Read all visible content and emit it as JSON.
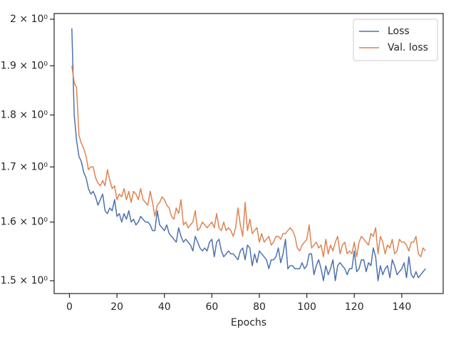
{
  "chart_data": {
    "type": "line",
    "x": [
      1,
      2,
      3,
      4,
      5,
      6,
      7,
      8,
      9,
      10,
      11,
      12,
      13,
      14,
      15,
      16,
      17,
      18,
      19,
      20,
      21,
      22,
      23,
      24,
      25,
      26,
      27,
      28,
      29,
      30,
      31,
      32,
      33,
      34,
      35,
      36,
      37,
      38,
      39,
      40,
      41,
      42,
      43,
      44,
      45,
      46,
      47,
      48,
      49,
      50,
      51,
      52,
      53,
      54,
      55,
      56,
      57,
      58,
      59,
      60,
      61,
      62,
      63,
      64,
      65,
      66,
      67,
      68,
      69,
      70,
      71,
      72,
      73,
      74,
      75,
      76,
      77,
      78,
      79,
      80,
      81,
      82,
      83,
      84,
      85,
      86,
      87,
      88,
      89,
      90,
      91,
      92,
      93,
      94,
      95,
      96,
      97,
      98,
      99,
      100,
      101,
      102,
      103,
      104,
      105,
      106,
      107,
      108,
      109,
      110,
      111,
      112,
      113,
      114,
      115,
      116,
      117,
      118,
      119,
      120,
      121,
      122,
      123,
      124,
      125,
      126,
      127,
      128,
      129,
      130,
      131,
      132,
      133,
      134,
      135,
      136,
      137,
      138,
      139,
      140,
      141,
      142,
      143,
      144,
      145,
      146,
      147,
      148,
      149,
      150
    ],
    "series": [
      {
        "name": "Loss",
        "color": "#4c72b0",
        "values": [
          1.98,
          1.8,
          1.75,
          1.72,
          1.71,
          1.69,
          1.68,
          1.66,
          1.65,
          1.655,
          1.645,
          1.63,
          1.64,
          1.65,
          1.62,
          1.615,
          1.625,
          1.62,
          1.64,
          1.61,
          1.615,
          1.6,
          1.615,
          1.605,
          1.62,
          1.6,
          1.605,
          1.595,
          1.6,
          1.61,
          1.605,
          1.6,
          1.6,
          1.595,
          1.585,
          1.585,
          1.62,
          1.595,
          1.59,
          1.585,
          1.595,
          1.58,
          1.575,
          1.57,
          1.565,
          1.59,
          1.575,
          1.565,
          1.57,
          1.565,
          1.56,
          1.55,
          1.575,
          1.565,
          1.555,
          1.55,
          1.555,
          1.55,
          1.565,
          1.57,
          1.54,
          1.565,
          1.57,
          1.55,
          1.54,
          1.545,
          1.55,
          1.545,
          1.545,
          1.54,
          1.535,
          1.55,
          1.555,
          1.535,
          1.56,
          1.555,
          1.525,
          1.545,
          1.53,
          1.55,
          1.545,
          1.54,
          1.535,
          1.52,
          1.535,
          1.535,
          1.54,
          1.555,
          1.53,
          1.545,
          1.57,
          1.52,
          1.525,
          1.525,
          1.52,
          1.52,
          1.52,
          1.53,
          1.52,
          1.525,
          1.545,
          1.545,
          1.51,
          1.525,
          1.535,
          1.52,
          1.5,
          1.525,
          1.51,
          1.52,
          1.535,
          1.5,
          1.525,
          1.53,
          1.525,
          1.52,
          1.51,
          1.52,
          1.52,
          1.55,
          1.515,
          1.52,
          1.535,
          1.535,
          1.515,
          1.53,
          1.525,
          1.555,
          1.54,
          1.5,
          1.525,
          1.51,
          1.52,
          1.525,
          1.505,
          1.535,
          1.525,
          1.51,
          1.515,
          1.52,
          1.53,
          1.505,
          1.54,
          1.51,
          1.505,
          1.515,
          1.505,
          1.51,
          1.515,
          1.52
        ]
      },
      {
        "name": "Val. loss",
        "color": "#dd8452",
        "values": [
          1.9,
          1.865,
          1.855,
          1.76,
          1.745,
          1.735,
          1.72,
          1.695,
          1.7,
          1.7,
          1.68,
          1.67,
          1.665,
          1.675,
          1.665,
          1.695,
          1.675,
          1.66,
          1.665,
          1.64,
          1.65,
          1.645,
          1.66,
          1.64,
          1.655,
          1.635,
          1.655,
          1.65,
          1.64,
          1.66,
          1.64,
          1.635,
          1.63,
          1.655,
          1.635,
          1.61,
          1.63,
          1.635,
          1.645,
          1.64,
          1.63,
          1.625,
          1.61,
          1.605,
          1.625,
          1.615,
          1.64,
          1.595,
          1.6,
          1.59,
          1.595,
          1.6,
          1.62,
          1.585,
          1.59,
          1.6,
          1.595,
          1.59,
          1.595,
          1.6,
          1.59,
          1.615,
          1.59,
          1.585,
          1.6,
          1.585,
          1.59,
          1.585,
          1.575,
          1.59,
          1.625,
          1.595,
          1.575,
          1.635,
          1.585,
          1.605,
          1.58,
          1.585,
          1.59,
          1.565,
          1.58,
          1.565,
          1.57,
          1.575,
          1.56,
          1.565,
          1.575,
          1.575,
          1.57,
          1.58,
          1.58,
          1.585,
          1.59,
          1.585,
          1.575,
          1.555,
          1.55,
          1.56,
          1.565,
          1.57,
          1.595,
          1.555,
          1.56,
          1.565,
          1.555,
          1.56,
          1.54,
          1.57,
          1.545,
          1.56,
          1.55,
          1.565,
          1.575,
          1.545,
          1.56,
          1.565,
          1.545,
          1.55,
          1.545,
          1.565,
          1.54,
          1.565,
          1.575,
          1.57,
          1.565,
          1.56,
          1.58,
          1.575,
          1.59,
          1.545,
          1.575,
          1.565,
          1.545,
          1.56,
          1.555,
          1.57,
          1.545,
          1.55,
          1.57,
          1.565,
          1.565,
          1.56,
          1.55,
          1.565,
          1.565,
          1.575,
          1.545,
          1.54,
          1.555,
          1.55
        ]
      }
    ],
    "xlabel": "Epochs",
    "xlim": [
      -6.45,
      157.45
    ],
    "xticks": [
      0,
      20,
      40,
      60,
      80,
      100,
      120,
      140
    ],
    "ylim": [
      1.479,
      2.0125
    ],
    "yscale": "log",
    "yticks": [
      {
        "value": 1.5,
        "label": "1.5 × 10⁰"
      },
      {
        "value": 1.6,
        "label": "1.6 × 10⁰"
      },
      {
        "value": 1.7,
        "label": "1.7 × 10⁰"
      },
      {
        "value": 1.8,
        "label": "1.8 × 10⁰"
      },
      {
        "value": 1.9,
        "label": "1.9 × 10⁰"
      },
      {
        "value": 2,
        "label": "2 × 10⁰"
      }
    ],
    "legend": "upper right"
  }
}
